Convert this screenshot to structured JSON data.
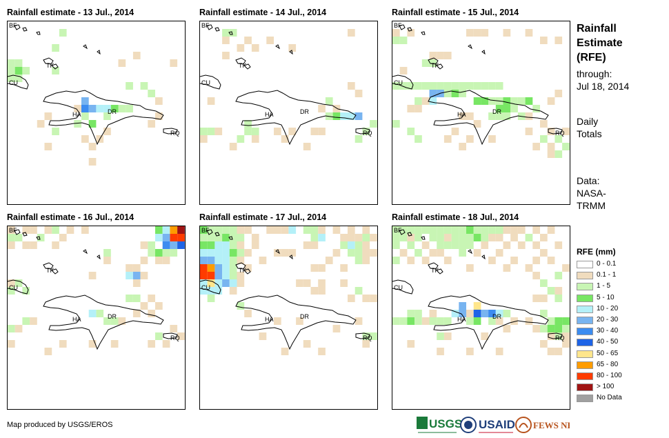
{
  "panels": [
    {
      "title": "Rainfall estimate - 13 Jul., 2014",
      "labels": [
        "BF",
        "TK",
        "CU",
        "HA",
        "DR",
        "RQ"
      ]
    },
    {
      "title": "Rainfall estimate - 14 Jul., 2014",
      "labels": [
        "BF",
        "TK",
        "CU",
        "HA",
        "DR",
        "RQ"
      ]
    },
    {
      "title": "Rainfall estimate - 15 Jul., 2014",
      "labels": [
        "BF",
        "TK",
        "CU",
        "HA",
        "DR",
        "RQ"
      ]
    },
    {
      "title": "Rainfall estimate - 16 Jul., 2014",
      "labels": [
        "BF",
        "TK",
        "CU",
        "HA",
        "DR",
        "RQ"
      ]
    },
    {
      "title": "Rainfall estimate - 17 Jul., 2014",
      "labels": [
        "BF",
        "TK",
        "CU",
        "HA",
        "DR",
        "RQ"
      ]
    },
    {
      "title": "Rainfall estimate - 18 Jul., 2014",
      "labels": [
        "BF",
        "TK",
        "CU",
        "HA",
        "DR",
        "RQ"
      ]
    }
  ],
  "side": {
    "title_line1": "Rainfall",
    "title_line2": "Estimate",
    "title_line3": "(RFE)",
    "through": "through:",
    "date": "Jul 18, 2014",
    "totals1": "Daily",
    "totals2": "Totals",
    "data1": "Data:",
    "data2": "NASA-",
    "data3": "TRMM"
  },
  "legend": {
    "title": "RFE (mm)",
    "items": [
      {
        "label": "0 - 0.1",
        "color": "#ffffff"
      },
      {
        "label": "0.1 - 1",
        "color": "#f0dcbe"
      },
      {
        "label": "1 - 5",
        "color": "#c8f5b4"
      },
      {
        "label": "5 - 10",
        "color": "#78e664"
      },
      {
        "label": "10 - 20",
        "color": "#b4f0f8"
      },
      {
        "label": "20 - 30",
        "color": "#78b4f0"
      },
      {
        "label": "30 - 40",
        "color": "#3c8cf0"
      },
      {
        "label": "40 - 50",
        "color": "#1e64e6"
      },
      {
        "label": "50 - 65",
        "color": "#ffe68c"
      },
      {
        "label": "65 - 80",
        "color": "#ff9c00"
      },
      {
        "label": "80 - 100",
        "color": "#ff3c00"
      },
      {
        "label": "> 100",
        "color": "#a01414"
      },
      {
        "label": "No Data",
        "color": "#a0a0a0"
      }
    ]
  },
  "footer": "Map produced by USGS/EROS",
  "logos": [
    "USGS",
    "USAID",
    "FEWS NET"
  ]
}
